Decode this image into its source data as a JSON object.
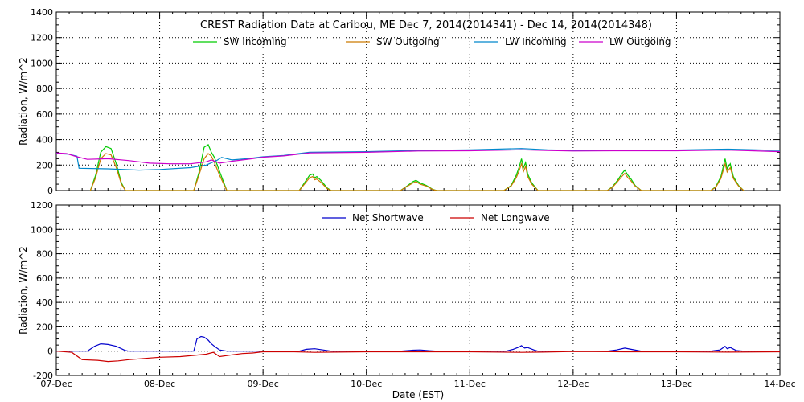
{
  "title": "CREST Radiation Data at Caribou, ME   Dec  7, 2014(2014341) - Dec 14, 2014(2014348)",
  "xlabel": "Date (EST)",
  "colors": {
    "sw_in": "#00cc00",
    "sw_out": "#cc7a00",
    "lw_in": "#0088cc",
    "lw_out": "#cc00cc",
    "net_sw": "#0000cc",
    "net_lw": "#cc0000",
    "axis": "#000000"
  },
  "chart_data": [
    {
      "type": "line",
      "ylabel": "Radiation, W/m^2",
      "ylim": [
        0,
        1400
      ],
      "yticks": [
        "0",
        "200",
        "400",
        "600",
        "800",
        "1000",
        "1200",
        "1400"
      ],
      "xlim": [
        0,
        7
      ],
      "xticks": [
        "07-Dec",
        "08-Dec",
        "09-Dec",
        "10-Dec",
        "11-Dec",
        "12-Dec",
        "13-Dec",
        "14-Dec"
      ],
      "grid": true,
      "legend": "top",
      "series": [
        {
          "name": "SW Incoming",
          "color_key": "sw_in",
          "points": [
            [
              0.33,
              0
            ],
            [
              0.38,
              120
            ],
            [
              0.43,
              300
            ],
            [
              0.48,
              345
            ],
            [
              0.53,
              330
            ],
            [
              0.58,
              210
            ],
            [
              0.63,
              60
            ],
            [
              0.67,
              0
            ],
            [
              1.33,
              0
            ],
            [
              1.38,
              140
            ],
            [
              1.43,
              340
            ],
            [
              1.47,
              360
            ],
            [
              1.5,
              300
            ],
            [
              1.53,
              260
            ],
            [
              1.58,
              150
            ],
            [
              1.65,
              0
            ],
            [
              2.35,
              0
            ],
            [
              2.4,
              60
            ],
            [
              2.45,
              120
            ],
            [
              2.48,
              130
            ],
            [
              2.5,
              100
            ],
            [
              2.52,
              110
            ],
            [
              2.56,
              80
            ],
            [
              2.62,
              20
            ],
            [
              2.66,
              0
            ],
            [
              3.33,
              0
            ],
            [
              3.4,
              40
            ],
            [
              3.45,
              70
            ],
            [
              3.48,
              80
            ],
            [
              3.52,
              60
            ],
            [
              3.58,
              40
            ],
            [
              3.64,
              10
            ],
            [
              3.68,
              0
            ],
            [
              4.33,
              0
            ],
            [
              4.4,
              40
            ],
            [
              4.45,
              120
            ],
            [
              4.48,
              190
            ],
            [
              4.5,
              250
            ],
            [
              4.52,
              180
            ],
            [
              4.54,
              220
            ],
            [
              4.56,
              130
            ],
            [
              4.6,
              60
            ],
            [
              4.66,
              0
            ],
            [
              5.33,
              0
            ],
            [
              5.38,
              30
            ],
            [
              5.43,
              80
            ],
            [
              5.47,
              130
            ],
            [
              5.5,
              160
            ],
            [
              5.53,
              120
            ],
            [
              5.56,
              90
            ],
            [
              5.6,
              40
            ],
            [
              5.66,
              0
            ],
            [
              6.33,
              0
            ],
            [
              6.38,
              30
            ],
            [
              6.43,
              110
            ],
            [
              6.47,
              250
            ],
            [
              6.49,
              170
            ],
            [
              6.52,
              210
            ],
            [
              6.55,
              110
            ],
            [
              6.6,
              40
            ],
            [
              6.65,
              0
            ]
          ]
        },
        {
          "name": "SW Outgoing",
          "color_key": "sw_out",
          "points": [
            [
              0.33,
              0
            ],
            [
              0.38,
              100
            ],
            [
              0.43,
              250
            ],
            [
              0.48,
              290
            ],
            [
              0.53,
              280
            ],
            [
              0.58,
              180
            ],
            [
              0.63,
              50
            ],
            [
              0.67,
              0
            ],
            [
              1.33,
              0
            ],
            [
              1.38,
              120
            ],
            [
              1.43,
              250
            ],
            [
              1.47,
              290
            ],
            [
              1.5,
              270
            ],
            [
              1.53,
              220
            ],
            [
              1.58,
              120
            ],
            [
              1.65,
              0
            ],
            [
              2.35,
              0
            ],
            [
              2.4,
              50
            ],
            [
              2.45,
              100
            ],
            [
              2.48,
              110
            ],
            [
              2.5,
              85
            ],
            [
              2.52,
              90
            ],
            [
              2.56,
              65
            ],
            [
              2.62,
              15
            ],
            [
              2.66,
              0
            ],
            [
              3.33,
              0
            ],
            [
              3.4,
              35
            ],
            [
              3.45,
              60
            ],
            [
              3.48,
              70
            ],
            [
              3.52,
              50
            ],
            [
              3.58,
              35
            ],
            [
              3.64,
              8
            ],
            [
              3.68,
              0
            ],
            [
              4.33,
              0
            ],
            [
              4.4,
              35
            ],
            [
              4.45,
              100
            ],
            [
              4.48,
              160
            ],
            [
              4.5,
              210
            ],
            [
              4.52,
              150
            ],
            [
              4.54,
              190
            ],
            [
              4.56,
              110
            ],
            [
              4.6,
              50
            ],
            [
              4.66,
              0
            ],
            [
              5.33,
              0
            ],
            [
              5.38,
              25
            ],
            [
              5.43,
              70
            ],
            [
              5.47,
              110
            ],
            [
              5.5,
              135
            ],
            [
              5.53,
              100
            ],
            [
              5.56,
              75
            ],
            [
              5.6,
              35
            ],
            [
              5.66,
              0
            ],
            [
              6.33,
              0
            ],
            [
              6.38,
              25
            ],
            [
              6.43,
              95
            ],
            [
              6.47,
              210
            ],
            [
              6.49,
              145
            ],
            [
              6.52,
              180
            ],
            [
              6.55,
              95
            ],
            [
              6.6,
              35
            ],
            [
              6.65,
              0
            ]
          ]
        },
        {
          "name": "LW Incoming",
          "color_key": "lw_in",
          "points": [
            [
              0,
              290
            ],
            [
              0.12,
              285
            ],
            [
              0.2,
              270
            ],
            [
              0.22,
              175
            ],
            [
              0.5,
              170
            ],
            [
              0.8,
              160
            ],
            [
              1.0,
              165
            ],
            [
              1.3,
              180
            ],
            [
              1.45,
              200
            ],
            [
              1.55,
              235
            ],
            [
              1.6,
              260
            ],
            [
              1.7,
              240
            ],
            [
              1.85,
              250
            ],
            [
              2.0,
              265
            ],
            [
              2.2,
              275
            ],
            [
              2.45,
              300
            ],
            [
              3.0,
              305
            ],
            [
              3.5,
              315
            ],
            [
              4.0,
              320
            ],
            [
              4.5,
              330
            ],
            [
              4.75,
              320
            ],
            [
              5.0,
              315
            ],
            [
              5.5,
              318
            ],
            [
              6.0,
              318
            ],
            [
              6.5,
              325
            ],
            [
              7.0,
              315
            ]
          ]
        },
        {
          "name": "LW Outgoing",
          "color_key": "lw_out",
          "points": [
            [
              0,
              295
            ],
            [
              0.1,
              290
            ],
            [
              0.2,
              265
            ],
            [
              0.3,
              245
            ],
            [
              0.5,
              250
            ],
            [
              0.7,
              235
            ],
            [
              0.9,
              215
            ],
            [
              1.1,
              210
            ],
            [
              1.3,
              210
            ],
            [
              1.45,
              225
            ],
            [
              1.5,
              240
            ],
            [
              1.58,
              215
            ],
            [
              1.7,
              230
            ],
            [
              1.85,
              245
            ],
            [
              2.0,
              262
            ],
            [
              2.2,
              272
            ],
            [
              2.45,
              295
            ],
            [
              3.0,
              300
            ],
            [
              3.5,
              310
            ],
            [
              4.0,
              312
            ],
            [
              4.5,
              320
            ],
            [
              4.75,
              315
            ],
            [
              5.0,
              310
            ],
            [
              5.5,
              312
            ],
            [
              6.0,
              312
            ],
            [
              6.5,
              318
            ],
            [
              7.0,
              305
            ]
          ]
        }
      ]
    },
    {
      "type": "line",
      "ylabel": "Radiation, W/m^2",
      "ylim": [
        -200,
        1200
      ],
      "yticks": [
        "-200",
        "0",
        "200",
        "400",
        "600",
        "800",
        "1000",
        "1200"
      ],
      "xlim": [
        0,
        7
      ],
      "xticks": [
        "07-Dec",
        "08-Dec",
        "09-Dec",
        "10-Dec",
        "11-Dec",
        "12-Dec",
        "13-Dec",
        "14-Dec"
      ],
      "grid": true,
      "legend": "top",
      "series": [
        {
          "name": "Net Shortwave",
          "color_key": "net_sw",
          "points": [
            [
              0,
              0
            ],
            [
              0.3,
              0
            ],
            [
              0.37,
              40
            ],
            [
              0.43,
              60
            ],
            [
              0.5,
              55
            ],
            [
              0.58,
              40
            ],
            [
              0.67,
              5
            ],
            [
              0.7,
              0
            ],
            [
              1.33,
              0
            ],
            [
              1.36,
              100
            ],
            [
              1.4,
              120
            ],
            [
              1.43,
              115
            ],
            [
              1.47,
              90
            ],
            [
              1.5,
              60
            ],
            [
              1.53,
              40
            ],
            [
              1.58,
              10
            ],
            [
              1.65,
              0
            ],
            [
              2.35,
              0
            ],
            [
              2.42,
              15
            ],
            [
              2.5,
              20
            ],
            [
              2.58,
              10
            ],
            [
              2.66,
              0
            ],
            [
              3.33,
              0
            ],
            [
              3.45,
              8
            ],
            [
              3.52,
              10
            ],
            [
              3.6,
              4
            ],
            [
              3.68,
              0
            ],
            [
              4.35,
              0
            ],
            [
              4.42,
              15
            ],
            [
              4.48,
              35
            ],
            [
              4.5,
              45
            ],
            [
              4.53,
              25
            ],
            [
              4.56,
              30
            ],
            [
              4.62,
              10
            ],
            [
              4.66,
              0
            ],
            [
              5.33,
              0
            ],
            [
              5.42,
              10
            ],
            [
              5.5,
              25
            ],
            [
              5.56,
              15
            ],
            [
              5.66,
              0
            ],
            [
              6.33,
              0
            ],
            [
              6.42,
              10
            ],
            [
              6.47,
              40
            ],
            [
              6.49,
              20
            ],
            [
              6.52,
              30
            ],
            [
              6.58,
              5
            ],
            [
              6.65,
              0
            ],
            [
              7.0,
              0
            ]
          ]
        },
        {
          "name": "Net Longwave",
          "color_key": "net_lw",
          "points": [
            [
              0,
              0
            ],
            [
              0.15,
              -10
            ],
            [
              0.25,
              -70
            ],
            [
              0.4,
              -75
            ],
            [
              0.5,
              -85
            ],
            [
              0.6,
              -80
            ],
            [
              0.7,
              -70
            ],
            [
              0.85,
              -60
            ],
            [
              1.0,
              -50
            ],
            [
              1.2,
              -45
            ],
            [
              1.33,
              -35
            ],
            [
              1.45,
              -25
            ],
            [
              1.52,
              -10
            ],
            [
              1.58,
              -45
            ],
            [
              1.7,
              -30
            ],
            [
              1.8,
              -20
            ],
            [
              1.9,
              -15
            ],
            [
              2.0,
              -5
            ],
            [
              2.3,
              -5
            ],
            [
              2.5,
              -10
            ],
            [
              2.7,
              -8
            ],
            [
              3.0,
              -5
            ],
            [
              3.5,
              -5
            ],
            [
              4.0,
              -5
            ],
            [
              4.5,
              -10
            ],
            [
              4.7,
              -8
            ],
            [
              5.0,
              -3
            ],
            [
              5.5,
              -5
            ],
            [
              6.0,
              -5
            ],
            [
              6.5,
              -8
            ],
            [
              7.0,
              -5
            ]
          ]
        }
      ]
    }
  ]
}
